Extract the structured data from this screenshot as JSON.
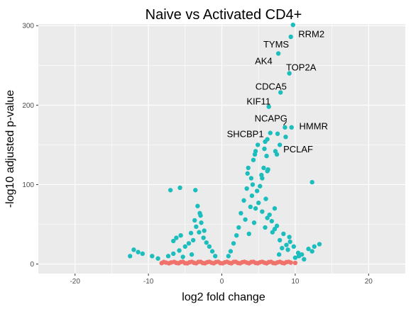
{
  "chart_data": {
    "type": "scatter",
    "title": "Naive vs Activated CD4+",
    "xlabel": "log2 fold change",
    "ylabel": "-log10 adjusted p-value",
    "xlim": [
      -25,
      25
    ],
    "ylim": [
      -12,
      302
    ],
    "x_ticks": [
      -20,
      -10,
      0,
      10,
      20
    ],
    "y_ticks": [
      0,
      100,
      200,
      300
    ],
    "grid": true,
    "legend": "none",
    "colors": {
      "panel": "#EBEBEB",
      "grid": "#FFFFFF",
      "significant": "#1CBDBD",
      "not_significant": "#F0736B"
    },
    "series": [
      {
        "color": "#1CBDBD",
        "points": [
          [
            9.7,
            301
          ],
          [
            9.4,
            286
          ],
          [
            7.7,
            265
          ],
          [
            9.2,
            240
          ],
          [
            8.0,
            216
          ],
          [
            6.4,
            198
          ],
          [
            8.6,
            172
          ],
          [
            9.5,
            172
          ],
          [
            8.7,
            160
          ],
          [
            6.6,
            165
          ],
          [
            7.6,
            164
          ],
          [
            7.9,
            150
          ],
          [
            6.2,
            157
          ],
          [
            5.9,
            154
          ],
          [
            4.9,
            150
          ],
          [
            7.3,
            142
          ],
          [
            5.8,
            145
          ],
          [
            4.6,
            142
          ],
          [
            4.5,
            138
          ],
          [
            7.5,
            138
          ],
          [
            4.3,
            131
          ],
          [
            6.1,
            136
          ],
          [
            6.3,
            119
          ],
          [
            3.6,
            121
          ],
          [
            6.2,
            117
          ],
          [
            3.5,
            114
          ],
          [
            5.5,
            108
          ],
          [
            5.7,
            121
          ],
          [
            4.0,
            108
          ],
          [
            12.3,
            103
          ],
          [
            -5.7,
            96
          ],
          [
            -3.6,
            93
          ],
          [
            -7.0,
            93
          ],
          [
            -3.3,
            73
          ],
          [
            -3.0,
            64
          ],
          [
            -2.9,
            61
          ],
          [
            -4.2,
            39
          ],
          [
            -5.6,
            36
          ],
          [
            -6.2,
            33
          ],
          [
            -6.6,
            29
          ],
          [
            -12.0,
            18
          ],
          [
            -11.4,
            15
          ],
          [
            -10.8,
            13
          ],
          [
            -12.5,
            10
          ],
          [
            -9.5,
            10
          ],
          [
            -8.7,
            7
          ],
          [
            13.3,
            25
          ],
          [
            12.6,
            22
          ],
          [
            11.8,
            19
          ],
          [
            12.3,
            16
          ],
          [
            10.9,
            12
          ],
          [
            10.5,
            10
          ],
          [
            8.4,
            38
          ],
          [
            9.2,
            34
          ],
          [
            8.8,
            24
          ],
          [
            9.8,
            22
          ],
          [
            9.0,
            18
          ],
          [
            10.4,
            14
          ],
          [
            7.5,
            48
          ],
          [
            2.6,
            64
          ],
          [
            3.0,
            80
          ],
          [
            3.4,
            95
          ],
          [
            4.1,
            86
          ],
          [
            5.0,
            77
          ],
          [
            4.6,
            70
          ],
          [
            5.5,
            66
          ],
          [
            6.2,
            58
          ],
          [
            6.8,
            54
          ],
          [
            7.2,
            44
          ],
          [
            6.5,
            62
          ],
          [
            5.2,
            98
          ],
          [
            4.8,
            92
          ],
          [
            3.9,
            72
          ],
          [
            3.2,
            56
          ],
          [
            2.3,
            46
          ],
          [
            2.0,
            36
          ],
          [
            1.6,
            26
          ],
          [
            1.2,
            16
          ],
          [
            0.9,
            10
          ],
          [
            -0.9,
            10
          ],
          [
            -1.3,
            16
          ],
          [
            -1.7,
            22
          ],
          [
            -2.1,
            27
          ],
          [
            -2.5,
            33
          ],
          [
            -3.1,
            40
          ],
          [
            -3.5,
            47
          ],
          [
            -2.8,
            52
          ],
          [
            -3.9,
            30
          ],
          [
            -4.5,
            26
          ],
          [
            -5.0,
            22
          ],
          [
            -5.8,
            17
          ],
          [
            -6.6,
            13
          ],
          [
            -7.3,
            10
          ],
          [
            -2.4,
            42
          ],
          [
            -3.7,
            55
          ],
          [
            -4.1,
            12
          ],
          [
            -5.3,
            9
          ],
          [
            5.9,
            46
          ],
          [
            7.9,
            30
          ],
          [
            8.2,
            20
          ],
          [
            10.0,
            8
          ],
          [
            11.2,
            6
          ],
          [
            4.4,
            52
          ],
          [
            3.7,
            38
          ],
          [
            6.9,
            40
          ],
          [
            7.2,
            70
          ],
          [
            6.0,
            82
          ],
          [
            5.4,
            112
          ],
          [
            4.2,
            100
          ],
          [
            7.8,
            12
          ],
          [
            9.3,
            28
          ]
        ]
      },
      {
        "color": "#F0736B",
        "points": [
          [
            -8.2,
            1.2
          ],
          [
            -7.6,
            1.8
          ],
          [
            -6.9,
            2.0
          ],
          [
            -6.2,
            1.5
          ],
          [
            -5.6,
            2.4
          ],
          [
            -5.0,
            1.1
          ],
          [
            -4.4,
            2.2
          ],
          [
            -3.8,
            1.6
          ],
          [
            -3.2,
            2.6
          ],
          [
            -2.6,
            1.3
          ],
          [
            -2.0,
            2.3
          ],
          [
            -1.4,
            1.7
          ],
          [
            -0.8,
            2.5
          ],
          [
            -0.2,
            1.2
          ],
          [
            0.4,
            2.1
          ],
          [
            1.0,
            1.6
          ],
          [
            1.6,
            2.6
          ],
          [
            2.2,
            1.3
          ],
          [
            2.8,
            2.3
          ],
          [
            3.4,
            1.8
          ],
          [
            4.0,
            2.5
          ],
          [
            4.6,
            1.4
          ],
          [
            5.2,
            2.2
          ],
          [
            5.8,
            1.7
          ],
          [
            6.4,
            2.4
          ],
          [
            7.0,
            1.3
          ],
          [
            7.6,
            2.1
          ],
          [
            8.2,
            1.6
          ],
          [
            8.8,
            2.4
          ],
          [
            9.4,
            1.8
          ],
          [
            10.0,
            1.4
          ],
          [
            -7.9,
            2.6
          ],
          [
            -7.2,
            1.0
          ],
          [
            -6.5,
            2.7
          ],
          [
            -5.9,
            1.0
          ],
          [
            -5.3,
            2.8
          ],
          [
            -4.7,
            1.0
          ],
          [
            -4.1,
            2.8
          ],
          [
            -3.5,
            1.0
          ],
          [
            -2.9,
            2.8
          ],
          [
            -2.3,
            1.0
          ],
          [
            -1.7,
            2.8
          ],
          [
            -1.1,
            1.0
          ],
          [
            -0.5,
            2.8
          ],
          [
            0.1,
            1.0
          ],
          [
            0.7,
            2.8
          ],
          [
            1.3,
            1.0
          ],
          [
            1.9,
            2.8
          ],
          [
            2.5,
            1.0
          ],
          [
            3.1,
            2.8
          ],
          [
            3.7,
            1.0
          ],
          [
            4.3,
            2.8
          ],
          [
            4.9,
            1.0
          ],
          [
            5.5,
            2.8
          ],
          [
            6.1,
            1.0
          ],
          [
            6.7,
            2.8
          ],
          [
            7.3,
            1.0
          ],
          [
            7.9,
            2.8
          ],
          [
            8.5,
            1.0
          ],
          [
            9.1,
            2.8
          ]
        ]
      }
    ],
    "annotations": [
      {
        "label": "RRM2",
        "x": 9.7,
        "y": 301,
        "lx": 12.2,
        "ly": 290
      },
      {
        "label": "TYMS",
        "x": 7.7,
        "y": 265,
        "lx": 7.4,
        "ly": 277
      },
      {
        "label": "AK4",
        "x": 7.7,
        "y": 265,
        "lx": 5.7,
        "ly": 256
      },
      {
        "label": "TOP2A",
        "x": 9.2,
        "y": 240,
        "lx": 10.8,
        "ly": 248
      },
      {
        "label": "CDCA5",
        "x": 8.0,
        "y": 216,
        "lx": 6.7,
        "ly": 224
      },
      {
        "label": "KIF11",
        "x": 6.4,
        "y": 198,
        "lx": 5.0,
        "ly": 205
      },
      {
        "label": "NCAPG",
        "x": 8.6,
        "y": 172,
        "lx": 6.7,
        "ly": 184
      },
      {
        "label": "HMMR",
        "x": 9.5,
        "y": 172,
        "lx": 12.5,
        "ly": 174
      },
      {
        "label": "SHCBP1",
        "x": 6.2,
        "y": 157,
        "lx": 3.2,
        "ly": 164
      },
      {
        "label": "PCLAF",
        "x": 8.7,
        "y": 160,
        "lx": 10.4,
        "ly": 145
      }
    ]
  }
}
